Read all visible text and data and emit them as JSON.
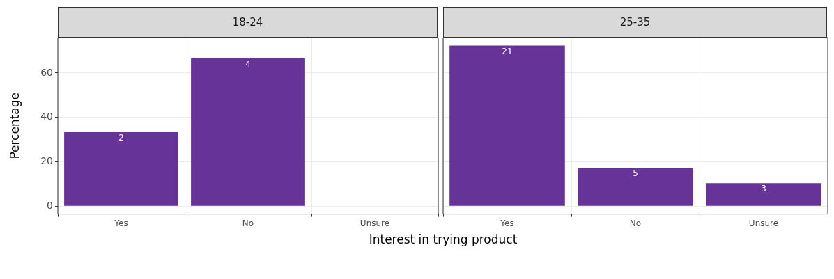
{
  "chart_data": [
    {
      "type": "bar",
      "title": "18-24",
      "ylabel": "Percentage",
      "xlabel": "Interest in trying product",
      "categories": [
        "Yes",
        "No",
        "Unsure"
      ],
      "values": [
        33.3,
        66.7,
        null
      ],
      "color": "#663399",
      "ylim": [
        -3.6,
        76
      ],
      "yticks": [
        0,
        20,
        40,
        60
      ],
      "grid": true,
      "legend": false,
      "annotations": [
        {
          "text": "2",
          "x": "Yes",
          "y": 33.3
        },
        {
          "text": "4",
          "x": "No",
          "y": 66.7
        }
      ]
    },
    {
      "type": "bar",
      "title": "25-35",
      "categories": [
        "Yes",
        "No",
        "Unsure"
      ],
      "values": [
        72.4,
        17.2,
        10.3
      ],
      "color": "#663399",
      "ylim": [
        -3.6,
        76
      ],
      "yticks": [
        0,
        20,
        40,
        60
      ],
      "grid": true,
      "legend": false,
      "tick_labels": "x",
      "annotations": [
        {
          "text": "21",
          "x": "Yes",
          "y": 72.4
        },
        {
          "text": "5",
          "x": "No",
          "y": 17.2
        },
        {
          "text": "3",
          "x": "Unsure",
          "y": 10.3
        }
      ]
    }
  ]
}
